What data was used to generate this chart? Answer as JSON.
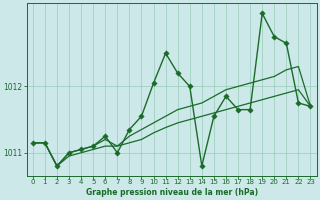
{
  "xlabel": "Graphe pression niveau de la mer (hPa)",
  "background_color": "#cce8e8",
  "grid_color": "#99ccbb",
  "line_color": "#1a6b2a",
  "xlim": [
    -0.5,
    23.5
  ],
  "ylim": [
    1010.65,
    1013.25
  ],
  "yticks": [
    1011,
    1012
  ],
  "xticks": [
    0,
    1,
    2,
    3,
    4,
    5,
    6,
    7,
    8,
    9,
    10,
    11,
    12,
    13,
    14,
    15,
    16,
    17,
    18,
    19,
    20,
    21,
    22,
    23
  ],
  "series_main": [
    1011.15,
    1011.15,
    1010.8,
    1011.0,
    1011.05,
    1011.1,
    1011.25,
    1011.0,
    1011.35,
    1011.55,
    1012.05,
    1012.5,
    1012.2,
    1012.0,
    1010.8,
    1011.55,
    1011.85,
    1011.65,
    1011.65,
    1013.1,
    1012.75,
    1012.65,
    1011.75,
    1011.7
  ],
  "series_trend1": [
    1011.15,
    1011.15,
    1010.8,
    1011.0,
    1011.05,
    1011.1,
    1011.2,
    1011.1,
    1011.25,
    1011.35,
    1011.45,
    1011.55,
    1011.65,
    1011.7,
    1011.75,
    1011.85,
    1011.95,
    1012.0,
    1012.05,
    1012.1,
    1012.15,
    1012.25,
    1012.3,
    1011.7
  ],
  "series_trend2": [
    1011.15,
    1011.15,
    1010.8,
    1010.95,
    1011.0,
    1011.05,
    1011.1,
    1011.1,
    1011.15,
    1011.2,
    1011.3,
    1011.38,
    1011.45,
    1011.5,
    1011.55,
    1011.6,
    1011.65,
    1011.7,
    1011.75,
    1011.8,
    1011.85,
    1011.9,
    1011.95,
    1011.7
  ],
  "marker_size": 2.8,
  "lw_main": 1.0,
  "lw_trend": 0.9
}
